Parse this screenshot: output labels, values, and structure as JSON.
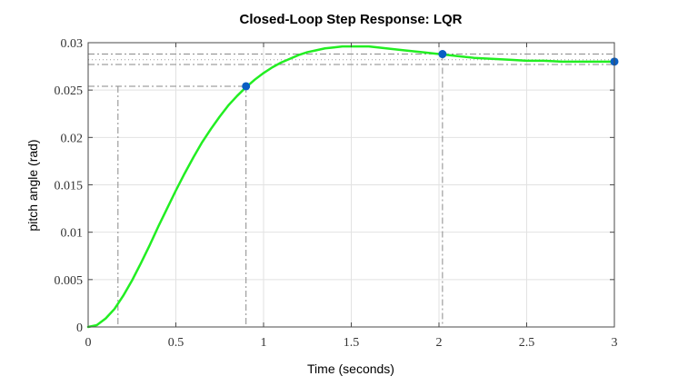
{
  "chart_data": {
    "type": "line",
    "title": "Closed-Loop Step Response: LQR",
    "xlabel": "Time (seconds)",
    "ylabel": "pitch angle (rad)",
    "xlim": [
      0,
      3
    ],
    "ylim": [
      0,
      0.03
    ],
    "xticks": [
      "0",
      "0.5",
      "1",
      "1.5",
      "2",
      "2.5",
      "3"
    ],
    "xtick_values": [
      0,
      0.5,
      1,
      1.5,
      2,
      2.5,
      3
    ],
    "yticks": [
      "0",
      "0.005",
      "0.01",
      "0.015",
      "0.02",
      "0.025",
      "0.03"
    ],
    "ytick_values": [
      0,
      0.005,
      0.01,
      0.015,
      0.02,
      0.025,
      0.03
    ],
    "grid": true,
    "series": [
      {
        "color": "#22ee22",
        "x": [
          0,
          0.05,
          0.1,
          0.15,
          0.2,
          0.25,
          0.3,
          0.35,
          0.4,
          0.45,
          0.5,
          0.55,
          0.6,
          0.65,
          0.7,
          0.75,
          0.8,
          0.85,
          0.9,
          0.95,
          1.0,
          1.05,
          1.1,
          1.15,
          1.2,
          1.25,
          1.3,
          1.35,
          1.4,
          1.45,
          1.5,
          1.55,
          1.6,
          1.7,
          1.8,
          1.9,
          2.0,
          2.1,
          2.2,
          2.3,
          2.4,
          2.5,
          2.6,
          2.7,
          2.8,
          2.9,
          3.0
        ],
        "y": [
          0,
          0.0002,
          0.0009,
          0.0019,
          0.0033,
          0.0049,
          0.0067,
          0.0086,
          0.0106,
          0.0125,
          0.0144,
          0.0162,
          0.0179,
          0.0195,
          0.0209,
          0.0222,
          0.0234,
          0.0244,
          0.0253,
          0.0261,
          0.0268,
          0.0274,
          0.0279,
          0.0283,
          0.0287,
          0.029,
          0.0292,
          0.0294,
          0.0295,
          0.0296,
          0.0296,
          0.0296,
          0.0296,
          0.0294,
          0.0292,
          0.029,
          0.0288,
          0.0286,
          0.0284,
          0.0283,
          0.0282,
          0.0281,
          0.0281,
          0.028,
          0.028,
          0.028,
          0.028
        ]
      }
    ],
    "markers": [
      {
        "x": 0.9,
        "y": 0.0254,
        "color": "#0a5fc4"
      },
      {
        "x": 2.02,
        "y": 0.0288,
        "color": "#0a5fc4"
      },
      {
        "x": 3.0,
        "y": 0.028,
        "color": "#0a5fc4"
      }
    ],
    "characteristic_lines": {
      "rise_start_x": 0.17,
      "rise_end_x": 0.9,
      "rise_end_y": 0.0254,
      "settling_x": 2.02,
      "settling_band_upper": 0.0288,
      "settling_band_lower": 0.0277,
      "final_value": 0.0282
    }
  }
}
